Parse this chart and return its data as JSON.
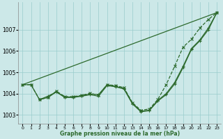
{
  "bg_color": "#cce8e8",
  "grid_color": "#99cccc",
  "line_color": "#2d6a2d",
  "xlabel": "Graphe pression niveau de la mer (hPa)",
  "xlim": [
    -0.5,
    23.5
  ],
  "ylim": [
    1002.6,
    1008.3
  ],
  "yticks": [
    1003,
    1004,
    1005,
    1006,
    1007
  ],
  "xticks": [
    0,
    1,
    2,
    3,
    4,
    5,
    6,
    7,
    8,
    9,
    10,
    11,
    12,
    13,
    14,
    15,
    16,
    17,
    18,
    19,
    20,
    21,
    22,
    23
  ],
  "series": [
    {
      "x": [
        0,
        23
      ],
      "y": [
        1004.42,
        1007.8
      ],
      "marker": null,
      "linestyle": "-",
      "linewidth": 0.9,
      "markersize": 0
    },
    {
      "x": [
        0,
        1,
        2,
        3,
        4,
        5,
        6,
        7,
        8,
        9,
        10,
        11,
        12,
        13,
        14,
        15,
        16,
        17,
        18,
        19,
        20,
        21,
        22,
        23
      ],
      "y": [
        1004.42,
        1004.42,
        1003.72,
        1003.82,
        1004.12,
        1003.86,
        1003.86,
        1003.92,
        1004.02,
        1003.92,
        1004.42,
        1004.38,
        1004.28,
        1003.58,
        1003.22,
        1003.28,
        1003.72,
        1004.42,
        1005.28,
        1006.18,
        1006.55,
        1007.08,
        1007.48,
        1007.8
      ],
      "marker": "x",
      "linestyle": "--",
      "linewidth": 0.9,
      "markersize": 3.0
    },
    {
      "x": [
        0,
        1,
        2,
        3,
        4,
        5,
        6,
        7,
        8,
        9,
        10,
        11,
        12,
        13,
        14,
        15,
        16,
        17,
        18,
        19,
        20,
        21,
        22,
        23
      ],
      "y": [
        1004.42,
        1004.42,
        1003.72,
        1003.88,
        1004.08,
        1003.84,
        1003.84,
        1003.9,
        1003.98,
        1003.96,
        1004.42,
        1004.34,
        1004.25,
        1003.55,
        1003.18,
        1003.22,
        1003.68,
        1004.0,
        1004.52,
        1005.28,
        1006.12,
        1006.52,
        1007.08,
        1007.8
      ],
      "marker": "+",
      "linestyle": "-",
      "linewidth": 0.9,
      "markersize": 3.0
    },
    {
      "x": [
        2,
        3,
        4,
        5,
        6,
        7,
        8,
        9,
        10,
        11,
        12,
        13,
        14,
        15,
        16,
        17,
        18,
        19,
        20,
        21,
        22,
        23
      ],
      "y": [
        1003.72,
        1003.82,
        1004.08,
        1003.82,
        1003.82,
        1003.88,
        1003.95,
        1003.88,
        1004.38,
        1004.32,
        1004.22,
        1003.52,
        1003.15,
        1003.2,
        1003.65,
        1003.95,
        1004.45,
        1005.22,
        1006.08,
        1006.48,
        1007.0,
        1007.8
      ],
      "marker": "+",
      "linestyle": "-",
      "linewidth": 0.9,
      "markersize": 3.0
    }
  ]
}
